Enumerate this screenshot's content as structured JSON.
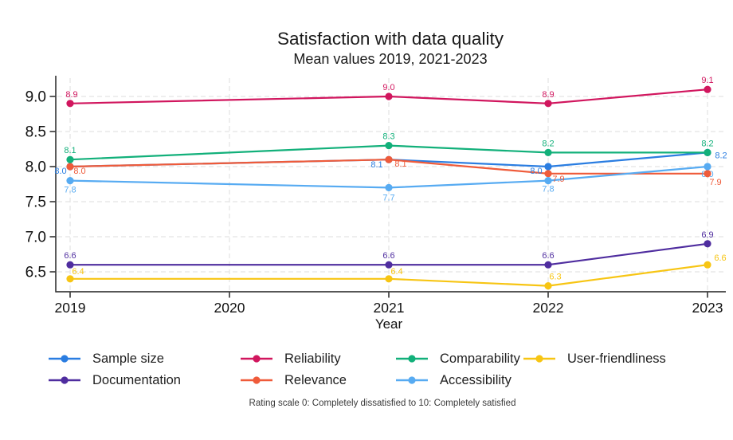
{
  "title": "Satisfaction with data quality",
  "subtitle": "Mean values 2019, 2021-2023",
  "footnote": "Rating scale 0: Completely dissatisfied to 10: Completely satisfied",
  "chart_data": {
    "type": "line",
    "x": [
      2019,
      2021,
      2022,
      2023
    ],
    "x_ticks": [
      2019,
      2020,
      2021,
      2022,
      2023
    ],
    "xlabel": "Year",
    "y_ticks": [
      6.5,
      7.0,
      7.5,
      8.0,
      8.5,
      9.0
    ],
    "ylim": [
      6.2,
      9.3
    ],
    "grid": "dashed-both",
    "legend_position": "bottom",
    "value_labels": "one-decimal, colored same as series",
    "series": [
      {
        "name": "Sample size",
        "color": "#2a7de1",
        "values": [
          8.0,
          8.1,
          8.0,
          8.2
        ],
        "label_offsets": [
          [
            -12,
            9
          ],
          [
            -15,
            10
          ],
          [
            -15,
            9
          ],
          [
            17,
            7
          ]
        ]
      },
      {
        "name": "Reliability",
        "color": "#d1165e",
        "values": [
          8.9,
          9.0,
          8.9,
          9.1
        ],
        "label_offsets": [
          [
            2,
            -8
          ],
          [
            0,
            -8
          ],
          [
            0,
            -8
          ],
          [
            0,
            -8
          ]
        ]
      },
      {
        "name": "Comparability",
        "color": "#12b07a",
        "values": [
          8.1,
          8.3,
          8.2,
          8.2
        ],
        "label_offsets": [
          [
            0,
            -8
          ],
          [
            0,
            -8
          ],
          [
            0,
            -8
          ],
          [
            0,
            -8
          ]
        ]
      },
      {
        "name": "User-friendliness",
        "color": "#f7c513",
        "values": [
          6.4,
          6.4,
          6.3,
          6.6
        ],
        "label_offsets": [
          [
            10,
            -6
          ],
          [
            10,
            -6
          ],
          [
            9,
            -8
          ],
          [
            16,
            -5
          ]
        ]
      },
      {
        "name": "Documentation",
        "color": "#4f2d9f",
        "values": [
          6.6,
          6.6,
          6.6,
          6.9
        ],
        "label_offsets": [
          [
            0,
            -8
          ],
          [
            0,
            -8
          ],
          [
            0,
            -8
          ],
          [
            0,
            -8
          ]
        ]
      },
      {
        "name": "Relevance",
        "color": "#ef5b3a",
        "values": [
          8.0,
          8.1,
          7.9,
          7.9
        ],
        "label_offsets": [
          [
            12,
            9
          ],
          [
            15,
            9
          ],
          [
            13,
            10
          ],
          [
            10,
            14
          ]
        ]
      },
      {
        "name": "Accessibility",
        "color": "#57abf2",
        "values": [
          7.8,
          7.7,
          7.8,
          8.0
        ],
        "label_offsets": [
          [
            0,
            15
          ],
          [
            0,
            16
          ],
          [
            0,
            14
          ],
          [
            0,
            13
          ]
        ]
      }
    ],
    "draw_order": [
      "User-friendliness",
      "Documentation",
      "Reliability",
      "Sample size",
      "Relevance",
      "Comparability",
      "Accessibility"
    ],
    "legend_rows": [
      [
        "Sample size",
        "Reliability",
        "Comparability",
        "User-friendliness"
      ],
      [
        "Documentation",
        "Relevance",
        "Accessibility"
      ]
    ]
  }
}
